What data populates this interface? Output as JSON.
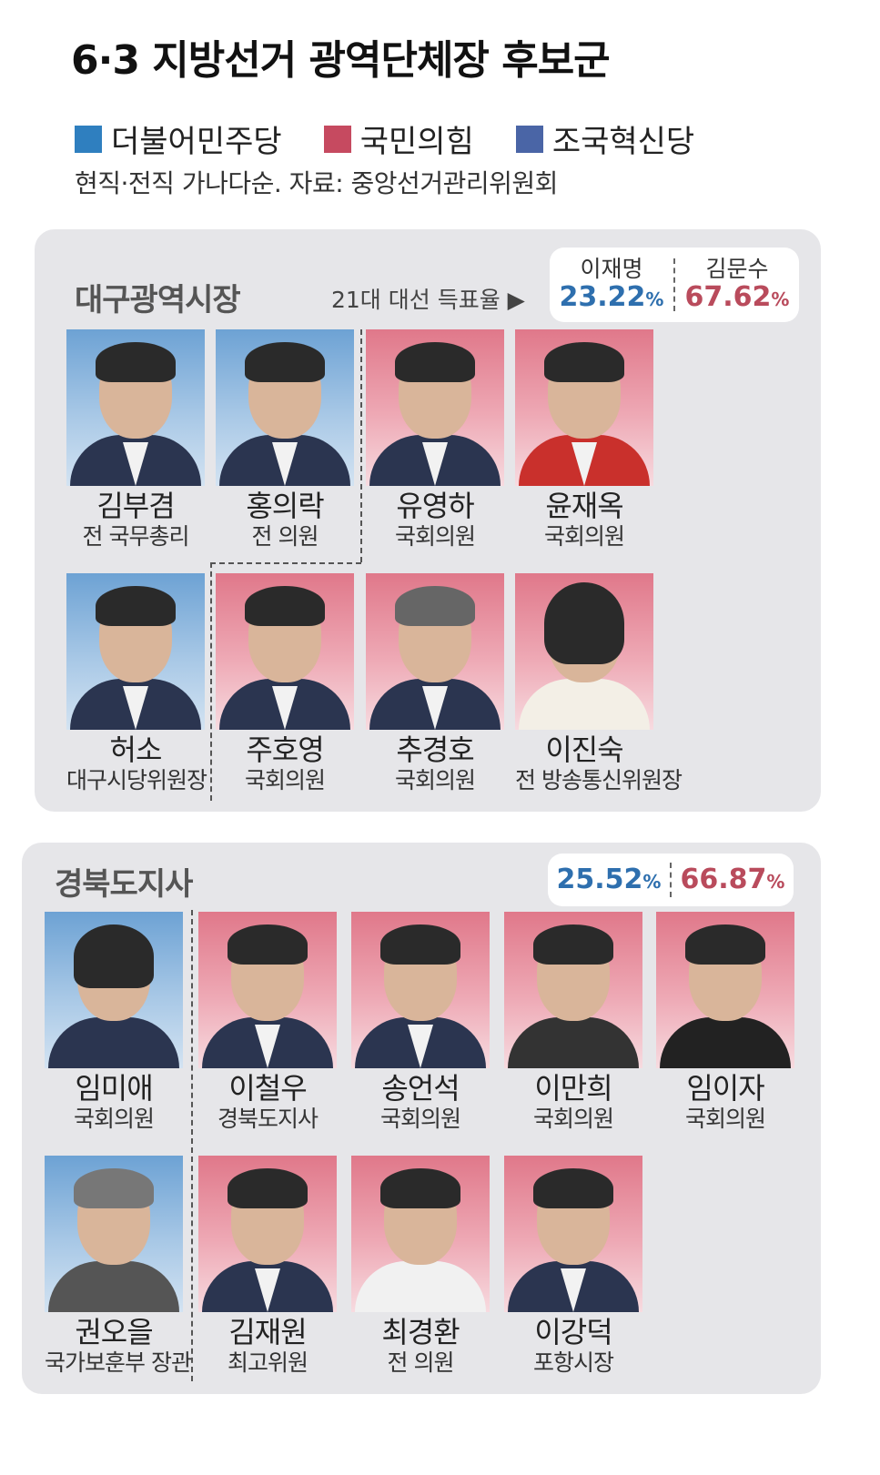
{
  "title": "6·3 지방선거 광역단체장 후보군",
  "legend": [
    {
      "label": "더불어민주당",
      "color": "#2f7fbf"
    },
    {
      "label": "국민의힘",
      "color": "#c64a60"
    },
    {
      "label": "조국혁신당",
      "color": "#4a65a6"
    }
  ],
  "note": "현직·전직 가나다순. 자료: 중앙선거관리위원회",
  "colors": {
    "dem_blue": "#2e6fae",
    "ppp_red": "#b94b5c",
    "panel_bg": "#e6e6e9"
  },
  "daegu": {
    "title": "대구광역시장",
    "vote_label": "21대 대선 득표율 ▶",
    "vote_left_name": "이재명",
    "vote_left_pct": "23.22",
    "vote_right_name": "김문수",
    "vote_right_pct": "67.62",
    "pct_sign": "%",
    "candidates": [
      {
        "name": "김부겸",
        "role": "전 국무총리",
        "party": "dem"
      },
      {
        "name": "홍의락",
        "role": "전 의원",
        "party": "dem"
      },
      {
        "name": "유영하",
        "role": "국회의원",
        "party": "ppp"
      },
      {
        "name": "윤재옥",
        "role": "국회의원",
        "party": "ppp"
      },
      {
        "name": "허소",
        "role": "대구시당위원장",
        "party": "dem"
      },
      {
        "name": "주호영",
        "role": "국회의원",
        "party": "ppp"
      },
      {
        "name": "추경호",
        "role": "국회의원",
        "party": "ppp"
      },
      {
        "name": "이진숙",
        "role": "전 방송통신위원장",
        "party": "ppp"
      }
    ]
  },
  "gyeongbuk": {
    "title": "경북도지사",
    "vote_left_pct": "25.52",
    "vote_right_pct": "66.87",
    "pct_sign": "%",
    "candidates": [
      {
        "name": "임미애",
        "role": "국회의원",
        "party": "dem"
      },
      {
        "name": "이철우",
        "role": "경북도지사",
        "party": "ppp"
      },
      {
        "name": "송언석",
        "role": "국회의원",
        "party": "ppp"
      },
      {
        "name": "이만희",
        "role": "국회의원",
        "party": "ppp"
      },
      {
        "name": "임이자",
        "role": "국회의원",
        "party": "ppp"
      },
      {
        "name": "권오을",
        "role": "국가보훈부 장관",
        "party": "dem"
      },
      {
        "name": "김재원",
        "role": "최고위원",
        "party": "ppp"
      },
      {
        "name": "최경환",
        "role": "전 의원",
        "party": "ppp"
      },
      {
        "name": "이강덕",
        "role": "포항시장",
        "party": "ppp"
      }
    ]
  }
}
